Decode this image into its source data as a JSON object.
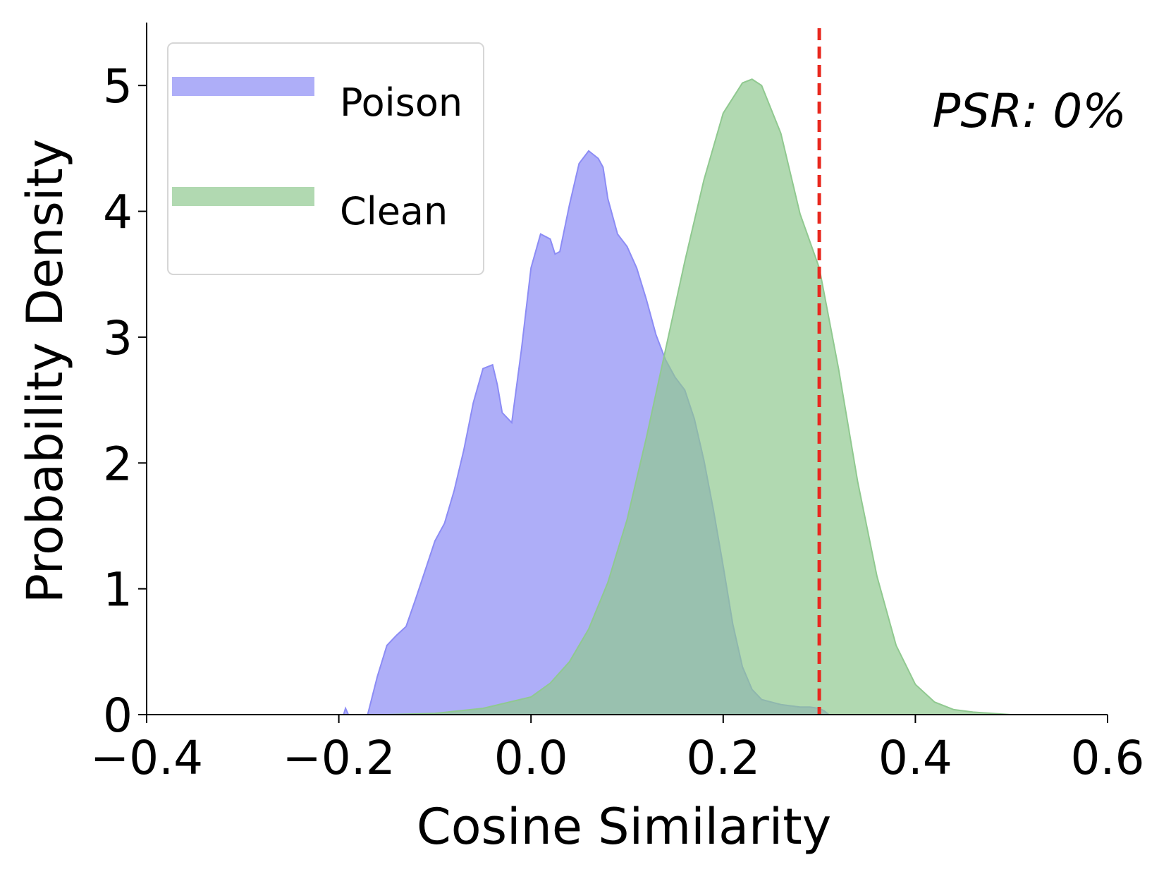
{
  "chart_data": {
    "type": "area",
    "xlabel": "Cosine Similarity",
    "ylabel": "Probability Density",
    "xlim": [
      -0.4,
      0.6
    ],
    "ylim": [
      0,
      5.5
    ],
    "xticks": [
      -0.4,
      -0.2,
      0.0,
      0.2,
      0.4,
      0.6
    ],
    "xtick_labels": [
      "−0.4",
      "−0.2",
      "0.0",
      "0.2",
      "0.4",
      "0.6"
    ],
    "yticks": [
      0,
      1,
      2,
      3,
      4,
      5
    ],
    "ytick_labels": [
      "0",
      "1",
      "2",
      "3",
      "4",
      "5"
    ],
    "legend_placement": "upper-left",
    "grid": false,
    "threshold": {
      "x": 0.3,
      "color": "#e8281e",
      "style": "dashed"
    },
    "annotation": "PSR: 0%",
    "series": [
      {
        "name": "Poison",
        "color": "#8c8cf5",
        "x": [
          -0.195,
          -0.193,
          -0.19,
          -0.17,
          -0.16,
          -0.15,
          -0.14,
          -0.13,
          -0.12,
          -0.11,
          -0.1,
          -0.09,
          -0.08,
          -0.07,
          -0.06,
          -0.05,
          -0.04,
          -0.035,
          -0.03,
          -0.02,
          -0.01,
          0.0,
          0.01,
          0.02,
          0.025,
          0.03,
          0.04,
          0.05,
          0.06,
          0.07,
          0.075,
          0.08,
          0.09,
          0.1,
          0.11,
          0.12,
          0.13,
          0.14,
          0.15,
          0.16,
          0.17,
          0.18,
          0.19,
          0.2,
          0.21,
          0.22,
          0.23,
          0.24,
          0.25,
          0.26,
          0.27,
          0.28,
          0.29,
          0.3,
          0.305,
          0.31
        ],
        "y": [
          0.0,
          0.05,
          0.0,
          0.0,
          0.3,
          0.55,
          0.63,
          0.7,
          0.92,
          1.15,
          1.38,
          1.52,
          1.78,
          2.1,
          2.48,
          2.75,
          2.78,
          2.62,
          2.4,
          2.32,
          2.9,
          3.55,
          3.82,
          3.78,
          3.66,
          3.68,
          4.05,
          4.38,
          4.48,
          4.42,
          4.35,
          4.1,
          3.82,
          3.72,
          3.55,
          3.3,
          3.02,
          2.82,
          2.68,
          2.58,
          2.35,
          2.02,
          1.62,
          1.18,
          0.72,
          0.38,
          0.2,
          0.12,
          0.1,
          0.08,
          0.07,
          0.06,
          0.06,
          0.05,
          0.03,
          0.0
        ]
      },
      {
        "name": "Clean",
        "color": "#90c990",
        "x": [
          -0.15,
          -0.1,
          -0.05,
          0.0,
          0.02,
          0.04,
          0.06,
          0.08,
          0.1,
          0.12,
          0.14,
          0.16,
          0.18,
          0.2,
          0.22,
          0.23,
          0.24,
          0.26,
          0.28,
          0.3,
          0.32,
          0.34,
          0.36,
          0.38,
          0.4,
          0.42,
          0.44,
          0.46,
          0.48,
          0.5,
          0.51
        ],
        "y": [
          0.0,
          0.01,
          0.05,
          0.14,
          0.25,
          0.42,
          0.68,
          1.05,
          1.55,
          2.2,
          2.9,
          3.6,
          4.25,
          4.78,
          5.02,
          5.05,
          5.0,
          4.62,
          3.98,
          3.55,
          2.75,
          1.85,
          1.1,
          0.55,
          0.24,
          0.1,
          0.04,
          0.02,
          0.01,
          0.0,
          0.0
        ]
      }
    ]
  }
}
